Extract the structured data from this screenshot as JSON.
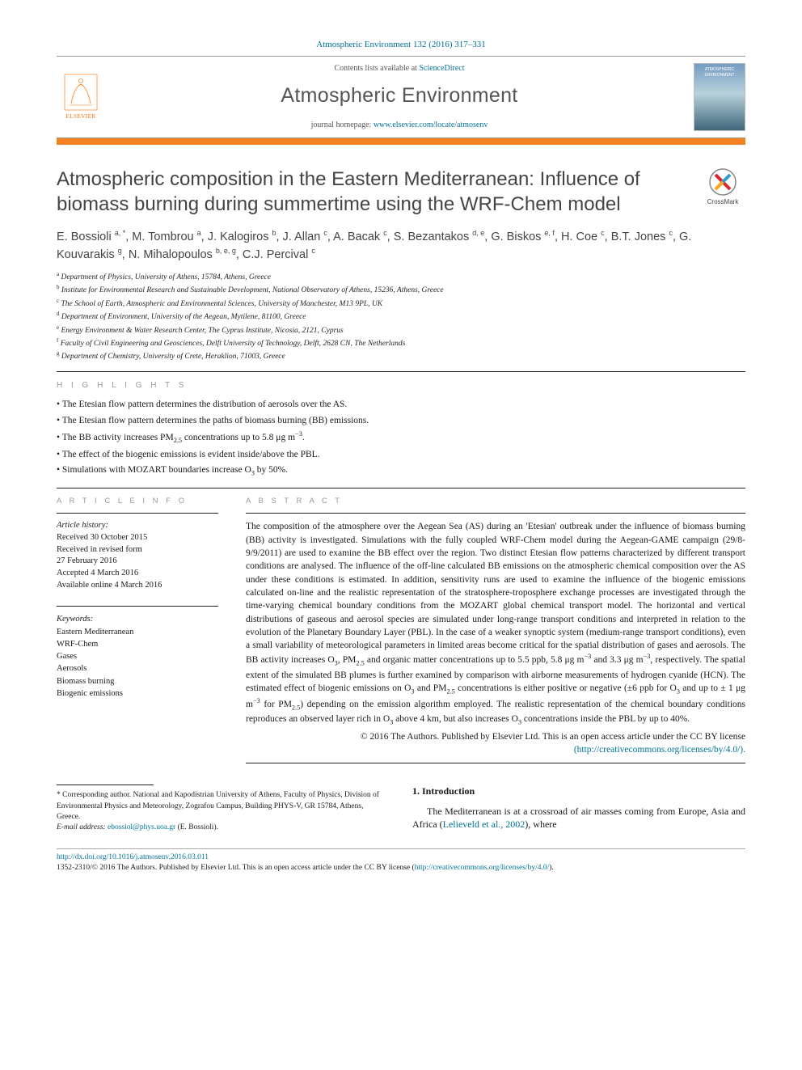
{
  "header": {
    "citation": "Atmospheric Environment 132 (2016) 317–331",
    "contents_prefix": "Contents lists available at ",
    "sciencedirect": "ScienceDirect",
    "journal_name": "Atmospheric Environment",
    "homepage_prefix": "journal homepage: ",
    "homepage_url": "www.elsevier.com/locate/atmosenv",
    "elsevier_label": "ELSEVIER",
    "crossmark_label": "CrossMark"
  },
  "title": "Atmospheric composition in the Eastern Mediterranean: Influence of biomass burning during summertime using the WRF-Chem model",
  "authors_html": "E. Bossioli <sup>a, *</sup>, M. Tombrou <sup>a</sup>, J. Kalogiros <sup>b</sup>, J. Allan <sup>c</sup>, A. Bacak <sup>c</sup>, S. Bezantakos <sup>d, e</sup>, G. Biskos <sup>e, f</sup>, H. Coe <sup>c</sup>, B.T. Jones <sup>c</sup>, G. Kouvarakis <sup>g</sup>, N. Mihalopoulos <sup>b, e, g</sup>, C.J. Percival <sup>c</sup>",
  "affiliations": [
    {
      "sup": "a",
      "text": "Department of Physics, University of Athens, 15784, Athens, Greece"
    },
    {
      "sup": "b",
      "text": "Institute for Environmental Research and Sustainable Development, National Observatory of Athens, 15236, Athens, Greece"
    },
    {
      "sup": "c",
      "text": "The School of Earth, Atmospheric and Environmental Sciences, University of Manchester, M13 9PL, UK"
    },
    {
      "sup": "d",
      "text": "Department of Environment, University of the Aegean, Mytilene, 81100, Greece"
    },
    {
      "sup": "e",
      "text": "Energy Environment & Water Research Center, The Cyprus Institute, Nicosia, 2121, Cyprus"
    },
    {
      "sup": "f",
      "text": "Faculty of Civil Engineering and Geosciences, Delft University of Technology, Delft, 2628 CN, The Netherlands"
    },
    {
      "sup": "g",
      "text": "Department of Chemistry, University of Crete, Heraklion, 71003, Greece"
    }
  ],
  "highlights": {
    "label": "H I G H L I G H T S",
    "items": [
      "The Etesian flow pattern determines the distribution of aerosols over the AS.",
      "The Etesian flow pattern determines the paths of biomass burning (BB) emissions.",
      "The BB activity increases PM2.5 concentrations up to 5.8 μg m−3.",
      "The effect of the biogenic emissions is evident inside/above the PBL.",
      "Simulations with MOZART boundaries increase O3 by 50%."
    ]
  },
  "article_info": {
    "label": "A R T I C L E   I N F O",
    "history_label": "Article history:",
    "history": [
      "Received 30 October 2015",
      "Received in revised form",
      "27 February 2016",
      "Accepted 4 March 2016",
      "Available online 4 March 2016"
    ],
    "keywords_label": "Keywords:",
    "keywords": [
      "Eastern Mediterranean",
      "WRF-Chem",
      "Gases",
      "Aerosols",
      "Biomass burning",
      "Biogenic emissions"
    ]
  },
  "abstract": {
    "label": "A B S T R A C T",
    "body": "The composition of the atmosphere over the Aegean Sea (AS) during an 'Etesian' outbreak under the influence of biomass burning (BB) activity is investigated. Simulations with the fully coupled WRF-Chem model during the Aegean-GAME campaign (29/8-9/9/2011) are used to examine the BB effect over the region. Two distinct Etesian flow patterns characterized by different transport conditions are analysed. The influence of the off-line calculated BB emissions on the atmospheric chemical composition over the AS under these conditions is estimated. In addition, sensitivity runs are used to examine the influence of the biogenic emissions calculated on-line and the realistic representation of the stratosphere-troposphere exchange processes are investigated through the time-varying chemical boundary conditions from the MOZART global chemical transport model. The horizontal and vertical distributions of gaseous and aerosol species are simulated under long-range transport conditions and interpreted in relation to the evolution of the Planetary Boundary Layer (PBL). In the case of a weaker synoptic system (medium-range transport conditions), even a small variability of meteorological parameters in limited areas become critical for the spatial distribution of gases and aerosols. The BB activity increases O3, PM2.5 and organic matter concentrations up to 5.5 ppb, 5.8 μg m−3 and 3.3 μg m−3, respectively. The spatial extent of the simulated BB plumes is further examined by comparison with airborne measurements of hydrogen cyanide (HCN). The estimated effect of biogenic emissions on O3 and PM2.5 concentrations is either positive or negative (±6 ppb for O3 and up to ± 1 μg m−3 for PM2.5) depending on the emission algorithm employed. The realistic representation of the chemical boundary conditions reproduces an observed layer rich in O3 above 4 km, but also increases O3 concentrations inside the PBL by up to 40%.",
    "copyright": "© 2016 The Authors. Published by Elsevier Ltd. This is an open access article under the CC BY license",
    "license_url": "(http://creativecommons.org/licenses/by/4.0/)."
  },
  "footnote": {
    "corr": "* Corresponding author. National and Kapodistrian University of Athens, Faculty of Physics, Division of Environmental Physics and Meteorology, Zografou Campus, Building PHYS-V, GR 15784, Athens, Greece.",
    "email_label": "E-mail address: ",
    "email": "ebossiol@phys.uoa.gr",
    "email_who": " (E. Bossioli)."
  },
  "intro": {
    "heading": "1.  Introduction",
    "body_pre": "The Mediterranean is at a crossroad of air masses coming from Europe, Asia and Africa (",
    "cite": "Lelieveld et al., 2002",
    "body_post": "), where"
  },
  "bottom": {
    "doi": "http://dx.doi.org/10.1016/j.atmosenv.2016.03.011",
    "line2_pre": "1352-2310/© 2016 The Authors. Published by Elsevier Ltd. This is an open access article under the CC BY license (",
    "line2_url": "http://creativecommons.org/licenses/by/4.0/",
    "line2_post": ")."
  },
  "colors": {
    "accent_orange": "#f58220",
    "link_blue": "#007398",
    "gray_label": "#999999",
    "text_dark": "#1a1a1a"
  }
}
